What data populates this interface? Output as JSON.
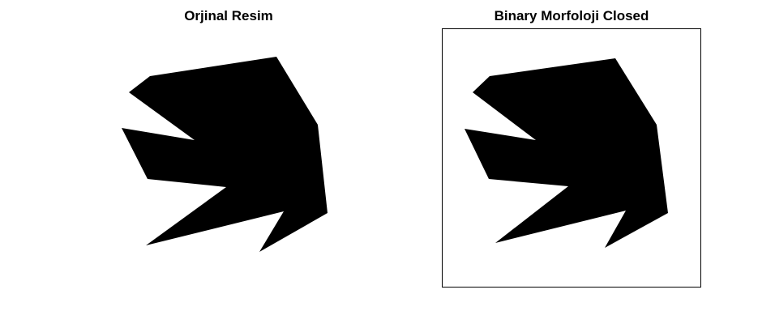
{
  "window": {
    "background": "#ffffff"
  },
  "subplots": [
    {
      "title": "Orjinal Resim",
      "framed": false,
      "fill_color": "#000000"
    },
    {
      "title": "Binary Morfoloji Closed",
      "framed": true,
      "frame_color": "#000000",
      "fill_color": "#000000"
    }
  ]
}
